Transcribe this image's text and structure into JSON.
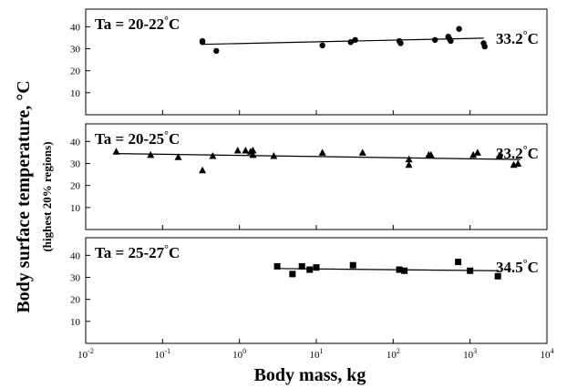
{
  "chart_data": {
    "type": "scatter",
    "xlabel": "Body mass, kg",
    "ylabel": "Body surface temperature, °C",
    "ylabel_sub": "(highest 20% regions)",
    "xscale": "log",
    "xlim": [
      0.01,
      10000
    ],
    "xticks": [
      {
        "value": 0.01,
        "base": "10",
        "exp": "-2"
      },
      {
        "value": 0.1,
        "base": "10",
        "exp": "-1"
      },
      {
        "value": 1,
        "base": "10",
        "exp": "0"
      },
      {
        "value": 10,
        "base": "10",
        "exp": "1"
      },
      {
        "value": 100,
        "base": "10",
        "exp": "2"
      },
      {
        "value": 1000,
        "base": "10",
        "exp": "3"
      },
      {
        "value": 10000,
        "base": "10",
        "exp": "4"
      }
    ],
    "ylim": [
      0,
      48
    ],
    "yticks": [
      10,
      20,
      30,
      40
    ],
    "grid": false,
    "panels": [
      {
        "label": "Ta = 20-22°C",
        "fit_label": "33.2°C",
        "marker": "circle",
        "fit": {
          "x": [
            0.33,
            1500
          ],
          "y": [
            32.0,
            34.8
          ]
        },
        "points": [
          {
            "x": 0.33,
            "y": 33.5
          },
          {
            "x": 0.33,
            "y": 33.0
          },
          {
            "x": 0.5,
            "y": 29.0
          },
          {
            "x": 12,
            "y": 31.5
          },
          {
            "x": 28,
            "y": 33.0
          },
          {
            "x": 32,
            "y": 34.0
          },
          {
            "x": 120,
            "y": 33.5
          },
          {
            "x": 125,
            "y": 32.5
          },
          {
            "x": 350,
            "y": 34.0
          },
          {
            "x": 520,
            "y": 35.5
          },
          {
            "x": 540,
            "y": 34.5
          },
          {
            "x": 560,
            "y": 33.5
          },
          {
            "x": 720,
            "y": 39.0
          },
          {
            "x": 1500,
            "y": 32.5
          },
          {
            "x": 1550,
            "y": 31.0
          }
        ]
      },
      {
        "label": "Ta = 20-25°C",
        "fit_label": "33.2°C",
        "marker": "triangle",
        "fit": {
          "x": [
            0.025,
            4500
          ],
          "y": [
            34.5,
            31.8
          ]
        },
        "points": [
          {
            "x": 0.025,
            "y": 35.5
          },
          {
            "x": 0.07,
            "y": 34.0
          },
          {
            "x": 0.16,
            "y": 33.0
          },
          {
            "x": 0.33,
            "y": 27.0
          },
          {
            "x": 0.45,
            "y": 33.5
          },
          {
            "x": 0.95,
            "y": 36.0
          },
          {
            "x": 1.2,
            "y": 36.0
          },
          {
            "x": 1.4,
            "y": 35.5
          },
          {
            "x": 1.5,
            "y": 36.0
          },
          {
            "x": 1.5,
            "y": 34.0
          },
          {
            "x": 2.8,
            "y": 33.5
          },
          {
            "x": 12,
            "y": 35.0
          },
          {
            "x": 40,
            "y": 35.0
          },
          {
            "x": 160,
            "y": 32.0
          },
          {
            "x": 160,
            "y": 29.5
          },
          {
            "x": 290,
            "y": 34.0
          },
          {
            "x": 310,
            "y": 34.0
          },
          {
            "x": 1100,
            "y": 34.0
          },
          {
            "x": 1250,
            "y": 35.0
          },
          {
            "x": 2400,
            "y": 33.5
          },
          {
            "x": 3700,
            "y": 29.5
          },
          {
            "x": 4200,
            "y": 30.0
          }
        ]
      },
      {
        "label": "Ta = 25-27°C",
        "fit_label": "34.5°C",
        "marker": "square",
        "fit": {
          "x": [
            3,
            2400
          ],
          "y": [
            34.0,
            33.0
          ]
        },
        "points": [
          {
            "x": 3.1,
            "y": 35.0
          },
          {
            "x": 4.9,
            "y": 31.5
          },
          {
            "x": 6.5,
            "y": 35.0
          },
          {
            "x": 8.2,
            "y": 33.5
          },
          {
            "x": 10,
            "y": 34.5
          },
          {
            "x": 30,
            "y": 35.5
          },
          {
            "x": 120,
            "y": 33.5
          },
          {
            "x": 140,
            "y": 33.0
          },
          {
            "x": 700,
            "y": 37.0
          },
          {
            "x": 1000,
            "y": 33.0
          },
          {
            "x": 2300,
            "y": 30.5
          }
        ]
      }
    ]
  }
}
